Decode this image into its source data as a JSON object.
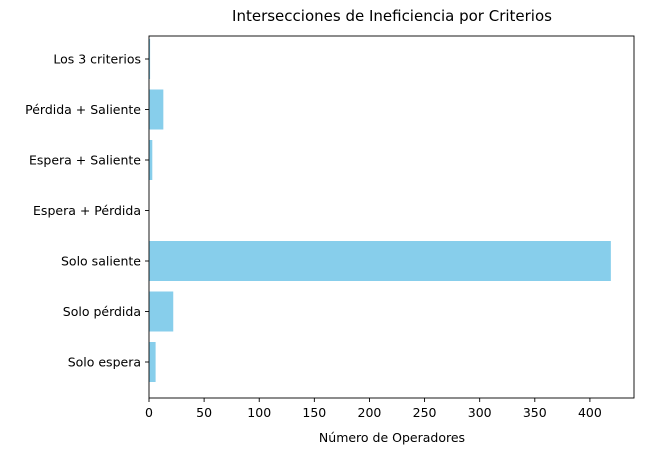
{
  "chart_data": {
    "type": "bar",
    "orientation": "horizontal",
    "title": "Intersecciones de Ineficiencia por Criterios",
    "xlabel": "Número de Operadores",
    "ylabel": "",
    "categories": [
      "Solo espera",
      "Solo pérdida",
      "Solo saliente",
      "Espera + Pérdida",
      "Espera + Saliente",
      "Pérdida + Saliente",
      "Los 3 criterios"
    ],
    "values": [
      6,
      22,
      419,
      0,
      3,
      13,
      1
    ],
    "xlim": [
      0,
      440
    ],
    "xticks": [
      0,
      50,
      100,
      150,
      200,
      250,
      300,
      350,
      400
    ],
    "bar_color": "#87ceeb",
    "grid": false,
    "legend": "none"
  }
}
